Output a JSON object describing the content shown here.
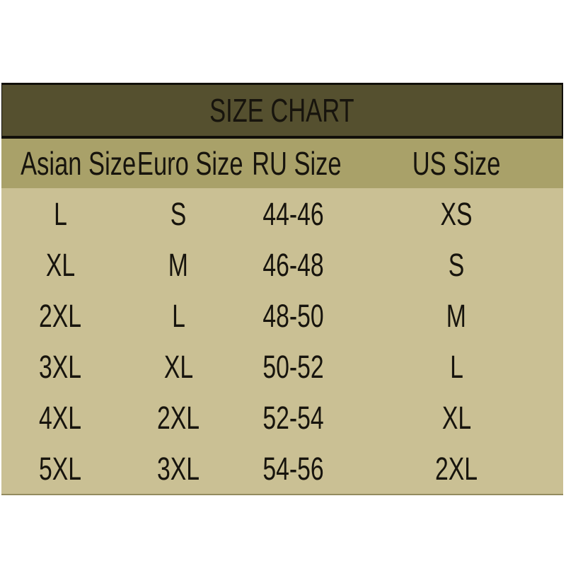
{
  "title_bar": {
    "title": "SIZE CHART"
  },
  "table": {
    "headers": [
      "Asian Size",
      "Euro Size",
      "RU Size",
      "US Size"
    ],
    "rows": [
      [
        "L",
        "S",
        "44-46",
        "XS"
      ],
      [
        "XL",
        "M",
        "46-48",
        "S"
      ],
      [
        "2XL",
        "L",
        "48-50",
        "M"
      ],
      [
        "3XL",
        "XL",
        "50-52",
        "L"
      ],
      [
        "4XL",
        "2XL",
        "52-54",
        "XL"
      ],
      [
        "5XL",
        "3XL",
        "54-56",
        "2XL"
      ]
    ]
  },
  "colors": {
    "title_bg": "#55502f",
    "header_bg": "#a9a169",
    "body_bg": "#cac094",
    "line": "#12100a",
    "text": "#17140d",
    "page_bg": "#ffffff"
  },
  "chart_data": {
    "type": "table",
    "title": "SIZE CHART",
    "columns": [
      "Asian Size",
      "Euro Size",
      "RU Size",
      "US Size"
    ],
    "rows": [
      [
        "L",
        "S",
        "44-46",
        "XS"
      ],
      [
        "XL",
        "M",
        "46-48",
        "S"
      ],
      [
        "2XL",
        "L",
        "48-50",
        "M"
      ],
      [
        "3XL",
        "XL",
        "50-52",
        "L"
      ],
      [
        "4XL",
        "2XL",
        "52-54",
        "XL"
      ],
      [
        "5XL",
        "3XL",
        "54-56",
        "2XL"
      ]
    ]
  }
}
